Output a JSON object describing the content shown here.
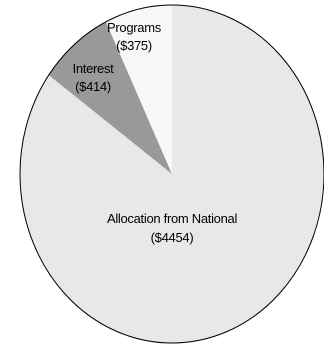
{
  "chart_data": {
    "type": "pie",
    "title": "",
    "slices": [
      {
        "label": "Allocation from National",
        "value_label": "($4454)",
        "value": 4454,
        "color": "#e8e8e8"
      },
      {
        "label": "Interest",
        "value_label": "($414)",
        "value": 414,
        "color": "#999999"
      },
      {
        "label": "Programs",
        "value_label": "($375)",
        "value": 375,
        "color": "#f8f8f8"
      }
    ],
    "start_angle_deg": 0,
    "direction": "clockwise",
    "edge_color": "#000000",
    "legend": "none"
  }
}
